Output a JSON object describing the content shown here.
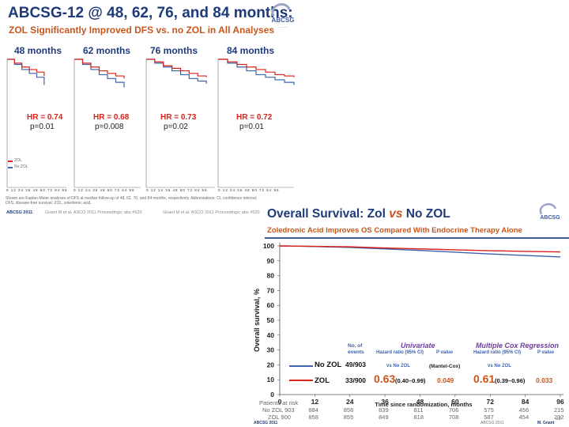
{
  "top": {
    "title": "ABCSG-12 @ 48, 62, 76, and 84 months:",
    "subtitle": "ZOL Significantly Improved DFS vs. no ZOL in All Analyses",
    "logo_text": "ABCSG",
    "panels": [
      {
        "label": "48 months",
        "hr": "HR = 0.74",
        "p": "p=0.01"
      },
      {
        "label": "62 months",
        "hr": "HR = 0.68",
        "p": "p=0.008"
      },
      {
        "label": "76 months",
        "hr": "HR = 0.73",
        "p": "p=0.02"
      },
      {
        "label": "84 months",
        "hr": "HR = 0.72",
        "p": "p=0.01"
      }
    ],
    "legend": {
      "zol": "ZOL",
      "nozol": "No ZOL"
    },
    "tick_row": "0 12 24 36 48 60 72 84 96",
    "footnote": "Shown are Kaplan-Meier analyses of DFS at median follow-up of 48, 62, 76, and 84 months, respectively. Abbreviations: CI, confidence interval; DFS, disease-free survival; ZOL, zoledronic acid.",
    "cite1": "Gnant M et al. ASCO 2011 Proceedings; abs #520",
    "cite2": "Gnant M et al. ASCO 2011 Proceedings; abs #520",
    "abcsg_year": "ABCSG 2011"
  },
  "bottom": {
    "title_a": "Overall Survival: Zol ",
    "title_vs": "vs",
    "title_b": " No ZOL",
    "subtitle": "Zoledronic Acid Improves OS Compared With Endocrine Therapy Alone",
    "table": {
      "hdr_events": [
        "No. of",
        "events"
      ],
      "univariate": "Univariate",
      "multiple": "Multiple Cox Regression",
      "hr_col": "Hazard ratio (95% CI)",
      "p_col": "P value",
      "vs_nozol": "vs No ZOL",
      "mantel": "(Mantel-Cox)",
      "rows": [
        {
          "label": "No ZOL",
          "events": "49/903",
          "hr1": "",
          "ci1": "",
          "p1": "",
          "hr2": "",
          "ci2": "",
          "p2": ""
        },
        {
          "label": "ZOL",
          "events": "33/900",
          "hr1": "0.63",
          "ci1": "(0.40–0.99)",
          "p1": "0.049",
          "hr2": "0.61",
          "ci2": "(0.39–0.96)",
          "p2": "0.033"
        }
      ]
    },
    "risk_header": "Patients at risk",
    "risk_rows": [
      {
        "label": "No ZOL 903",
        "values": [
          "884",
          "856",
          "839",
          "811",
          "706",
          "575",
          "456",
          "215"
        ]
      },
      {
        "label": "ZOL 900",
        "values": [
          "858",
          "855",
          "849",
          "818",
          "708",
          "587",
          "454",
          "232"
        ]
      }
    ],
    "footer_left": "ABCSG 2011",
    "footer_mid": "ABCSG 2011",
    "footer_right": "M. Gnant",
    "page_num": "23"
  },
  "chart_data": [
    {
      "type": "line",
      "title": "ABCSG-12 DFS Kaplan-Meier, 4 analyses (48, 62, 76, 84 months)",
      "xlabel": "",
      "ylabel": "",
      "series_names": [
        "ZOL",
        "No ZOL"
      ],
      "panels": [
        {
          "label": "48 months",
          "x": [
            0,
            12,
            24,
            36,
            48,
            60
          ],
          "zol": [
            100,
            97,
            94,
            92,
            90,
            87
          ],
          "nozol": [
            100,
            96,
            92,
            89,
            86,
            80
          ]
        },
        {
          "label": "62 months",
          "x": [
            0,
            12,
            24,
            36,
            48,
            60,
            72
          ],
          "zol": [
            100,
            97,
            94,
            91,
            89,
            87,
            85
          ],
          "nozol": [
            100,
            96,
            92,
            88,
            85,
            82,
            78
          ]
        },
        {
          "label": "76 months",
          "x": [
            0,
            12,
            24,
            36,
            48,
            60,
            72,
            84
          ],
          "zol": [
            100,
            98,
            95,
            93,
            91,
            89,
            87,
            86
          ],
          "nozol": [
            100,
            97,
            94,
            91,
            88,
            85,
            83,
            81
          ]
        },
        {
          "label": "84 months",
          "x": [
            0,
            12,
            24,
            36,
            48,
            60,
            72,
            84,
            96
          ],
          "zol": [
            100,
            98,
            96,
            94,
            92,
            90,
            88,
            87,
            86
          ],
          "nozol": [
            100,
            97,
            94,
            91,
            88,
            86,
            84,
            82,
            80
          ]
        }
      ]
    },
    {
      "type": "line",
      "title": "Overall Survival: Zol vs No ZOL",
      "xlabel": "Time since randomization, months",
      "ylabel": "Overall survival, %",
      "xlim": [
        0,
        96
      ],
      "ylim": [
        0,
        100
      ],
      "xticks": [
        0,
        12,
        24,
        36,
        48,
        60,
        72,
        84,
        96
      ],
      "yticks": [
        0,
        10,
        20,
        30,
        40,
        50,
        60,
        70,
        80,
        90,
        100
      ],
      "series": [
        {
          "name": "No ZOL",
          "color": "#3b62ad",
          "x": [
            0,
            12,
            24,
            36,
            48,
            60,
            72,
            84,
            96
          ],
          "y": [
            100,
            99.6,
            99.0,
            98.0,
            97.0,
            95.8,
            94.6,
            93.6,
            92.6
          ]
        },
        {
          "name": "ZOL",
          "color": "#d9231b",
          "x": [
            0,
            12,
            24,
            36,
            48,
            60,
            72,
            84,
            96
          ],
          "y": [
            100,
            99.7,
            99.4,
            98.6,
            98.0,
            97.4,
            96.8,
            96.3,
            96.0
          ]
        }
      ]
    }
  ],
  "colors": {
    "navy": "#1f3a7a",
    "orange": "#c8561b",
    "red": "#d9231b",
    "blue": "#3b62ad",
    "purple": "#6a3d9a"
  }
}
